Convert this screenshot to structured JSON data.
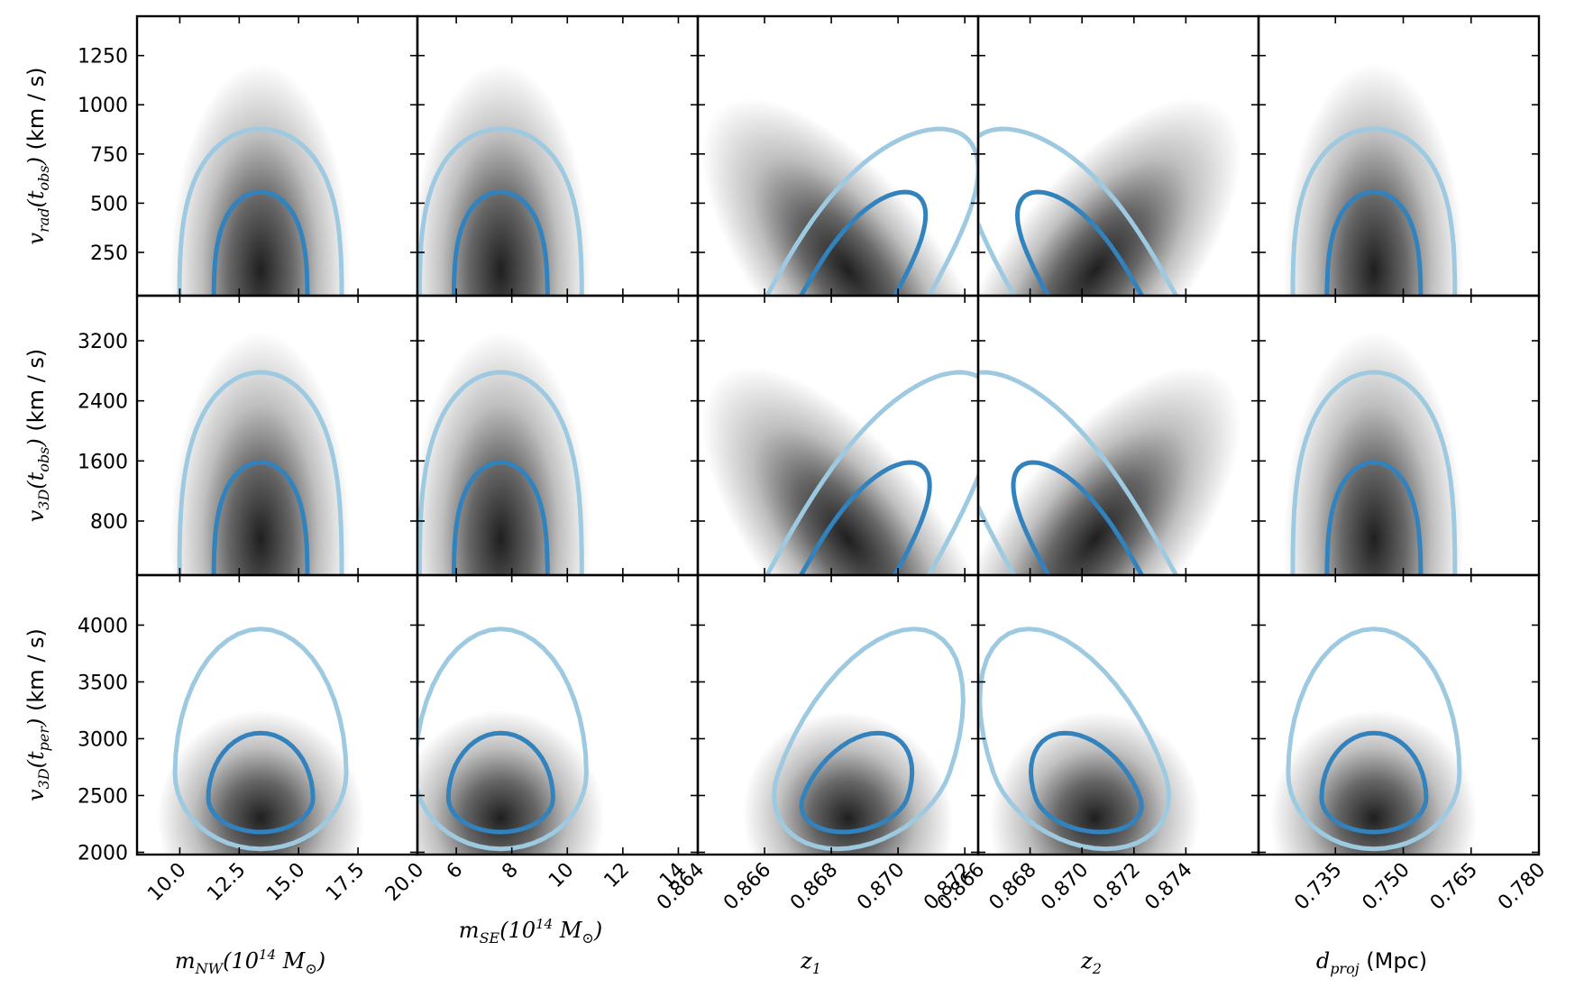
{
  "chart_data": {
    "type": "heatmap",
    "description_kind": "corner-plot grid of 2D posterior density panels with 68% and 95% contours",
    "colors": {
      "density": "#000000",
      "contour_inner": "#3182bd",
      "contour_outer": "#9ecae1"
    },
    "columns": [
      {
        "id": "mNW",
        "label_main": "m",
        "label_sub": "NW",
        "label_rest": "(10",
        "label_sup": "14",
        "label_tail": " M",
        "label_sun_sub": "⊙",
        "label_close": ")",
        "xlim": [
          8.2,
          20.0
        ],
        "ticks": [
          10.0,
          12.5,
          15.0,
          17.5,
          20.0
        ],
        "tick_labels": [
          "10.0",
          "12.5",
          "15.0",
          "17.5",
          "20.0"
        ],
        "peak": 13.4,
        "corr": 0
      },
      {
        "id": "mSE",
        "label_main": "m",
        "label_sub": "SE",
        "label_rest": "(10",
        "label_sup": "14",
        "label_tail": " M",
        "label_sun_sub": "⊙",
        "label_close": ")",
        "xlim": [
          4.6,
          14.7
        ],
        "ticks": [
          6,
          8,
          10,
          12,
          14
        ],
        "tick_labels": [
          "6",
          "8",
          "10",
          "12",
          "14"
        ],
        "peak": 7.6,
        "corr": 0
      },
      {
        "id": "z1",
        "label_main": "z",
        "label_sub": "1",
        "xlim": [
          0.864,
          0.8724
        ],
        "ticks": [
          0.864,
          0.866,
          0.868,
          0.87,
          0.872
        ],
        "tick_labels": [
          "0.864",
          "0.866",
          "0.868",
          "0.870",
          "0.872"
        ],
        "peak": 0.8685,
        "corr": -1
      },
      {
        "id": "z2",
        "label_main": "z",
        "label_sub": "2",
        "xlim": [
          0.866,
          0.8768
        ],
        "ticks": [
          0.866,
          0.868,
          0.87,
          0.872,
          0.874
        ],
        "tick_labels": [
          "0.866",
          "0.868",
          "0.870",
          "0.872",
          "0.874"
        ],
        "peak": 0.8705,
        "corr": 1
      },
      {
        "id": "dproj",
        "label_main": "d",
        "label_sub": "proj",
        "label_unit": " (Mpc)",
        "xlim": [
          0.718,
          0.78
        ],
        "ticks": [
          0.735,
          0.75,
          0.765,
          0.78
        ],
        "tick_labels": [
          "0.735",
          "0.750",
          "0.765",
          "0.780"
        ],
        "peak": 0.7435,
        "corr": 0
      }
    ],
    "rows": [
      {
        "id": "vrad_obs",
        "label_main": "v",
        "label_sub": "rad",
        "label_arg": "(t",
        "label_arg_sub": "obs",
        "label_close": ")",
        "label_unit": " (km / s)",
        "ylim": [
          30,
          1450
        ],
        "ticks": [
          250,
          500,
          750,
          1000,
          1250
        ],
        "tick_labels": [
          "250",
          "500",
          "750",
          "1000",
          "1250"
        ],
        "peak": 250,
        "shape": "open"
      },
      {
        "id": "v3d_obs",
        "label_main": "v",
        "label_sub": "3D",
        "label_arg": "(t",
        "label_arg_sub": "obs",
        "label_close": ")",
        "label_unit": " (km / s)",
        "ylim": [
          80,
          3800
        ],
        "ticks": [
          800,
          1600,
          2400,
          3200
        ],
        "tick_labels": [
          "800",
          "1600",
          "2400",
          "3200"
        ],
        "peak": 800,
        "shape": "open"
      },
      {
        "id": "v3d_per",
        "label_main": "v",
        "label_sub": "3D",
        "label_arg": "(t",
        "label_arg_sub": "per",
        "label_close": ")",
        "label_unit": " (km / s)",
        "ylim": [
          1980,
          4440
        ],
        "ticks": [
          2000,
          2500,
          3000,
          3500,
          4000
        ],
        "tick_labels": [
          "2000",
          "2500",
          "3000",
          "3500",
          "4000"
        ],
        "peak": 2300,
        "shape": "closed"
      }
    ]
  }
}
